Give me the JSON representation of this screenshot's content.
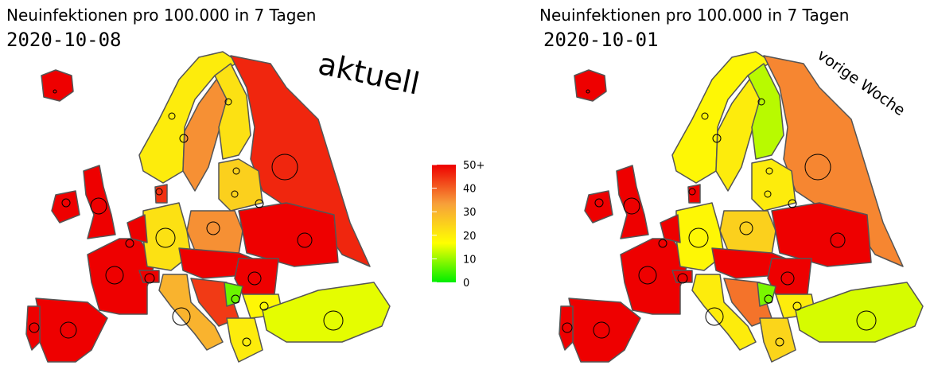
{
  "maps": [
    {
      "title": "Neuinfektionen pro 100.000 in 7 Tagen",
      "date": "2020-10-08",
      "annotation": "aktuell",
      "values": [
        50,
        20,
        35,
        22,
        46,
        50,
        50,
        50,
        50,
        50,
        22,
        35,
        50,
        50,
        50,
        30,
        44,
        7,
        18,
        20,
        15,
        50,
        50,
        25,
        45
      ]
    },
    {
      "title": "Neuinfektionen pro 100.000 in 7 Tagen",
      "date": "2020-10-01",
      "annotation": "vorige Woche",
      "values": [
        50,
        18,
        20,
        12,
        36,
        50,
        50,
        50,
        50,
        50,
        18,
        25,
        50,
        50,
        50,
        20,
        38,
        8,
        20,
        24,
        14,
        50,
        50,
        20,
        50
      ]
    }
  ],
  "legend": {
    "range": [
      0,
      50
    ],
    "ticks": [
      0,
      10,
      20,
      30,
      40,
      {
        "value": 50,
        "label": "50+"
      }
    ],
    "colors": [
      "#00ee00",
      "#ffff00",
      "#f7a03a",
      "#ee0000"
    ]
  }
}
